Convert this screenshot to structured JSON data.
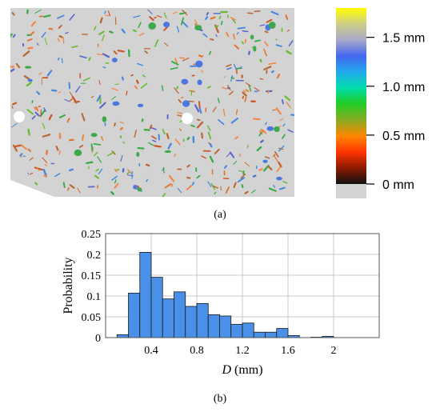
{
  "panel_a": {
    "caption": "(a)",
    "colorbar": {
      "ticks": [
        {
          "label": "1.5 mm",
          "value": 1.5
        },
        {
          "label": "1.0 mm",
          "value": 1.0
        },
        {
          "label": "0.5 mm",
          "value": 0.5
        },
        {
          "label": "0  mm",
          "value": 0
        }
      ],
      "range": [
        0,
        1.8
      ],
      "colors": [
        "#111111",
        "#8b1a00",
        "#ff3300",
        "#ff8800",
        "#88aa22",
        "#22cc22",
        "#00ddaa",
        "#22aaee",
        "#4466ee",
        "#aaaacc",
        "#cccc88",
        "#ffff00"
      ]
    },
    "map_colors": {
      "background": "#d3d3d3",
      "crack_colors": [
        "#cc5522",
        "#dd7733",
        "#bb6633",
        "#66bb33",
        "#33aa44",
        "#4488dd",
        "#5566cc",
        "#ee8844"
      ],
      "hole": "#ffffff"
    }
  },
  "panel_b": {
    "caption": "(b)",
    "chart_data": {
      "type": "bar",
      "xlabel_italic": "D",
      "xlabel_unit": " (mm)",
      "ylabel": "Probability",
      "xlim": [
        0,
        2.4
      ],
      "ylim": [
        0,
        0.25
      ],
      "bin_width": 0.1,
      "bins": [
        {
          "x0": 0.1,
          "value": 0.007
        },
        {
          "x0": 0.2,
          "value": 0.107
        },
        {
          "x0": 0.3,
          "value": 0.205
        },
        {
          "x0": 0.4,
          "value": 0.145
        },
        {
          "x0": 0.5,
          "value": 0.093
        },
        {
          "x0": 0.6,
          "value": 0.11
        },
        {
          "x0": 0.7,
          "value": 0.075
        },
        {
          "x0": 0.8,
          "value": 0.082
        },
        {
          "x0": 0.9,
          "value": 0.055
        },
        {
          "x0": 1.0,
          "value": 0.052
        },
        {
          "x0": 1.1,
          "value": 0.032
        },
        {
          "x0": 1.2,
          "value": 0.035
        },
        {
          "x0": 1.3,
          "value": 0.013
        },
        {
          "x0": 1.4,
          "value": 0.013
        },
        {
          "x0": 1.5,
          "value": 0.022
        },
        {
          "x0": 1.6,
          "value": 0.005
        },
        {
          "x0": 1.8,
          "value": 0.001
        },
        {
          "x0": 1.9,
          "value": 0.003
        }
      ],
      "x_ticks": [
        {
          "value": 0.4,
          "label": "0.4"
        },
        {
          "value": 0.8,
          "label": "0.8"
        },
        {
          "value": 1.2,
          "label": "1.2"
        },
        {
          "value": 1.6,
          "label": "1.6"
        },
        {
          "value": 2.0,
          "label": "2"
        }
      ],
      "y_ticks": [
        {
          "value": 0,
          "label": "0"
        },
        {
          "value": 0.05,
          "label": "0.05"
        },
        {
          "value": 0.1,
          "label": "0.1"
        },
        {
          "value": 0.15,
          "label": "0.15"
        },
        {
          "value": 0.2,
          "label": "0.2"
        },
        {
          "value": 0.25,
          "label": "0.25"
        }
      ],
      "grid": true,
      "bar_color": "#4a90e8",
      "bar_edge": "#1a1a1a"
    }
  }
}
